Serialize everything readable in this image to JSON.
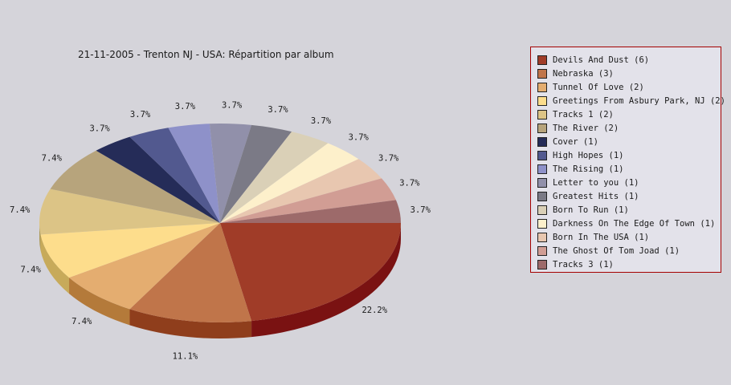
{
  "chart_data": {
    "type": "pie",
    "title": "21-11-2005 - Trenton NJ - USA:  Répartition par album",
    "slices": [
      {
        "name": "Devils And Dust",
        "count": 6,
        "percent": 22.2,
        "label": "22.2%",
        "legend": "Devils And Dust (6)",
        "color": "#a03c28",
        "dark": "#7a1212"
      },
      {
        "name": "Nebraska",
        "count": 3,
        "percent": 11.1,
        "label": "11.1%",
        "legend": "Nebraska (3)",
        "color": "#c0754a",
        "dark": "#8f3e1c"
      },
      {
        "name": "Tunnel Of Love",
        "count": 2,
        "percent": 7.4,
        "label": "7.4%",
        "legend": "Tunnel Of Love (2)",
        "color": "#e4ad70",
        "dark": "#b47a3a"
      },
      {
        "name": "Greetings From Asbury Park, NJ",
        "count": 2,
        "percent": 7.4,
        "label": "7.4%",
        "legend": "Greetings From Asbury Park, NJ (2)",
        "color": "#fddd8c",
        "dark": "#c7aa5a"
      },
      {
        "name": "Tracks 1",
        "count": 2,
        "percent": 7.4,
        "label": "7.4%",
        "legend": "Tracks 1 (2)",
        "color": "#dcc486",
        "dark": "#ad9a5a"
      },
      {
        "name": "The River",
        "count": 2,
        "percent": 7.4,
        "label": "7.4%",
        "legend": "The River (2)",
        "color": "#b7a47c",
        "dark": "#8b7a55"
      },
      {
        "name": "Cover",
        "count": 1,
        "percent": 3.7,
        "label": "3.7%",
        "legend": "Cover (1)",
        "color": "#252c58",
        "dark": "#151a3a"
      },
      {
        "name": "High Hopes",
        "count": 1,
        "percent": 3.7,
        "label": "3.7%",
        "legend": "High Hopes (1)",
        "color": "#52598f",
        "dark": "#353c6a"
      },
      {
        "name": "The Rising",
        "count": 1,
        "percent": 3.7,
        "label": "3.7%",
        "legend": "The Rising (1)",
        "color": "#8e91c9",
        "dark": "#6064a0"
      },
      {
        "name": "Letter to you",
        "count": 1,
        "percent": 3.7,
        "label": "3.7%",
        "legend": "Letter to you (1)",
        "color": "#9190aa",
        "dark": "#6b6a82"
      },
      {
        "name": "Greatest Hits",
        "count": 1,
        "percent": 3.7,
        "label": "3.7%",
        "legend": "Greatest Hits (1)",
        "color": "#7b7a86",
        "dark": "#57566a"
      },
      {
        "name": "Born To Run",
        "count": 1,
        "percent": 3.7,
        "label": "3.7%",
        "legend": "Born To Run (1)",
        "color": "#dad0b7",
        "dark": "#aaa088"
      },
      {
        "name": "Darkness On The Edge Of Town",
        "count": 1,
        "percent": 3.7,
        "label": "3.7%",
        "legend": "Darkness On The Edge Of Town (1)",
        "color": "#fdf0cb",
        "dark": "#cdbf98"
      },
      {
        "name": "Born In The USA",
        "count": 1,
        "percent": 3.7,
        "label": "3.7%",
        "legend": "Born In The USA (1)",
        "color": "#e8c7b0",
        "dark": "#b8977f"
      },
      {
        "name": "The Ghost Of Tom Joad",
        "count": 1,
        "percent": 3.7,
        "label": "3.7%",
        "legend": "The Ghost Of Tom Joad (1)",
        "color": "#d19d94",
        "dark": "#a0706a"
      },
      {
        "name": "Tracks 3",
        "count": 1,
        "percent": 3.7,
        "label": "3.7%",
        "legend": "Tracks 3 (1)",
        "color": "#9d6a6a",
        "dark": "#734646"
      }
    ],
    "legend_placement": "right",
    "style": "3d-pie"
  }
}
